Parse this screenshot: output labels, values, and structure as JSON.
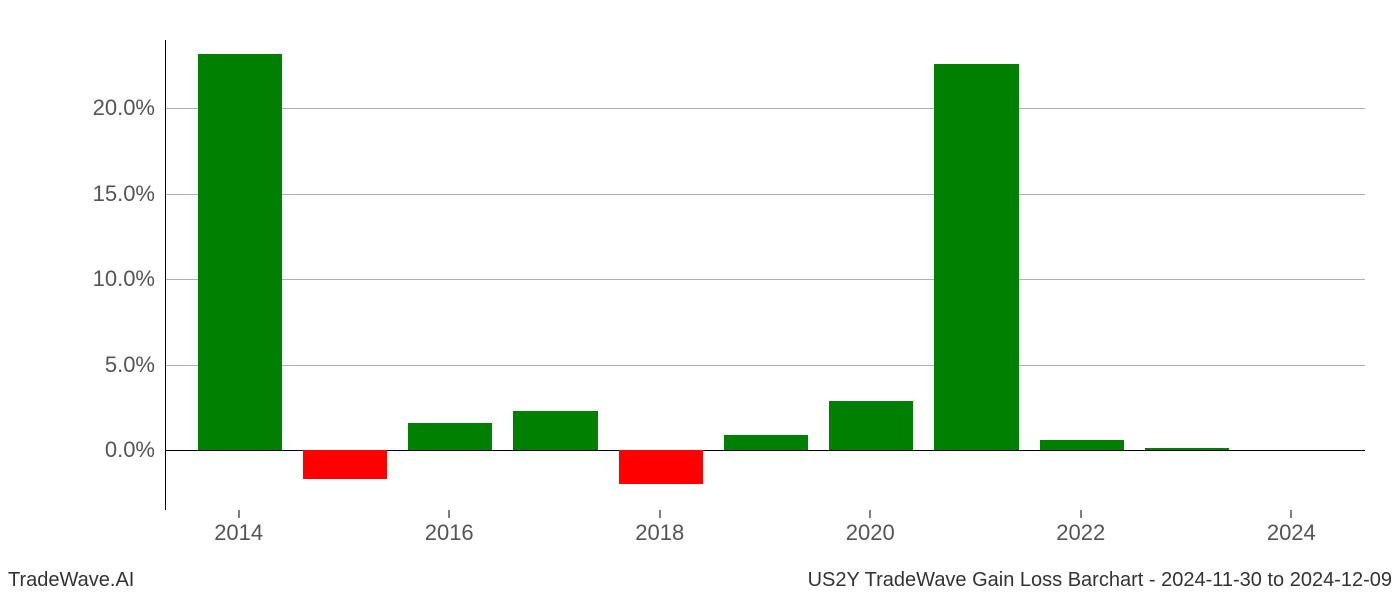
{
  "chart": {
    "type": "bar",
    "years": [
      2014,
      2015,
      2016,
      2017,
      2018,
      2019,
      2020,
      2021,
      2022,
      2023,
      2024
    ],
    "values": [
      23.2,
      -1.7,
      1.6,
      2.3,
      -2.0,
      0.9,
      2.9,
      22.6,
      0.6,
      0.1,
      0.0
    ],
    "bar_colors": [
      "#008000",
      "#ff0000",
      "#008000",
      "#008000",
      "#ff0000",
      "#008000",
      "#008000",
      "#008000",
      "#008000",
      "#008000",
      "#008000"
    ],
    "positive_color": "#008000",
    "negative_color": "#ff0000",
    "y_ticks": [
      0.0,
      5.0,
      10.0,
      15.0,
      20.0
    ],
    "y_tick_labels": [
      "0.0%",
      "5.0%",
      "10.0%",
      "15.0%",
      "20.0%"
    ],
    "x_ticks": [
      2014,
      2016,
      2018,
      2020,
      2022,
      2024
    ],
    "x_tick_labels": [
      "2014",
      "2016",
      "2018",
      "2020",
      "2022",
      "2024"
    ],
    "ylim_min": -3.5,
    "ylim_max": 24.0,
    "x_min": 2013.3,
    "x_max": 2024.7,
    "bar_width": 0.8,
    "background_color": "#ffffff",
    "grid_color": "#b0b0b0",
    "axis_text_color": "#555555",
    "tick_fontsize": 22
  },
  "footer": {
    "left": "TradeWave.AI",
    "right": "US2Y TradeWave Gain Loss Barchart - 2024-11-30 to 2024-12-09",
    "fontsize": 20,
    "color": "#333333"
  }
}
